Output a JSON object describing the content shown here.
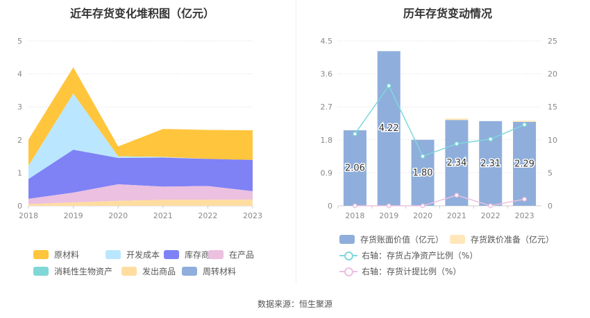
{
  "source_label": "数据来源：恒生聚源",
  "chart_data": [
    {
      "type": "area",
      "stacked": true,
      "title": "近年存货变化堆积图（亿元）",
      "x": [
        "2018",
        "2019",
        "2020",
        "2021",
        "2022",
        "2023"
      ],
      "ylim": [
        0,
        5
      ],
      "yticks": [
        "0",
        "1",
        "2",
        "3",
        "4",
        "5"
      ],
      "grid": true,
      "legend_position": "bottom",
      "series": [
        {
          "name": "原材料",
          "color": "#FFC53D",
          "values": [
            0.8,
            0.8,
            0.3,
            0.85,
            0.88,
            0.9
          ]
        },
        {
          "name": "开发成本",
          "color": "#BAE7FF",
          "values": [
            0.4,
            1.7,
            0.05,
            0.02,
            0.0,
            0.0
          ]
        },
        {
          "name": "库存商品",
          "color": "#7F82F5",
          "values": [
            0.6,
            1.3,
            0.8,
            0.88,
            0.82,
            0.95
          ]
        },
        {
          "name": "在产品",
          "color": "#EBC0E0",
          "values": [
            0.16,
            0.3,
            0.5,
            0.4,
            0.42,
            0.25
          ]
        },
        {
          "name": "消耗性生物资产",
          "color": "#80D8D6",
          "values": [
            0.0,
            0.0,
            0.0,
            0.0,
            0.0,
            0.0
          ]
        },
        {
          "name": "发出商品",
          "color": "#FFDDA0",
          "values": [
            0.05,
            0.1,
            0.15,
            0.18,
            0.18,
            0.19
          ]
        },
        {
          "name": "周转材料",
          "color": "#8FAEDB",
          "values": [
            0.0,
            0.0,
            0.0,
            0.0,
            0.0,
            0.0
          ]
        }
      ]
    },
    {
      "type": "bar",
      "title": "历年存货变动情况",
      "categories": [
        "2018",
        "2019",
        "2020",
        "2021",
        "2022",
        "2023"
      ],
      "ylim": [
        0,
        4.5
      ],
      "yticks": [
        "0",
        "0.9",
        "1.8",
        "2.7",
        "3.6",
        "4.5"
      ],
      "y2lim": [
        0,
        25
      ],
      "y2ticks": [
        "0",
        "5",
        "10",
        "15",
        "20",
        "25"
      ],
      "legend_position": "bottom",
      "series": [
        {
          "name": "存货账面价值（亿元）",
          "type": "bar",
          "color": "#8FAEDB",
          "values": [
            2.06,
            4.22,
            1.8,
            2.34,
            2.31,
            2.29
          ],
          "labels": [
            "2.06",
            "4.22",
            "1.80",
            "2.34",
            "2.31",
            "2.29"
          ]
        },
        {
          "name": "存货跌价准备（亿元）",
          "type": "bar",
          "color": "#FFE7BA",
          "values": [
            0,
            0,
            0,
            0.04,
            0,
            0.03
          ]
        },
        {
          "name": "右轴：存货占净资产比例（%）",
          "type": "line",
          "axis": "right",
          "color": "#7FD8DB",
          "values": [
            10.9,
            18.2,
            7.5,
            9.4,
            10.1,
            12.3
          ]
        },
        {
          "name": "右轴：存货计提比例（%）",
          "type": "line",
          "axis": "right",
          "color": "#EBC0E0",
          "values": [
            0.0,
            0.0,
            0.0,
            1.6,
            0.0,
            1.0
          ]
        }
      ]
    }
  ]
}
